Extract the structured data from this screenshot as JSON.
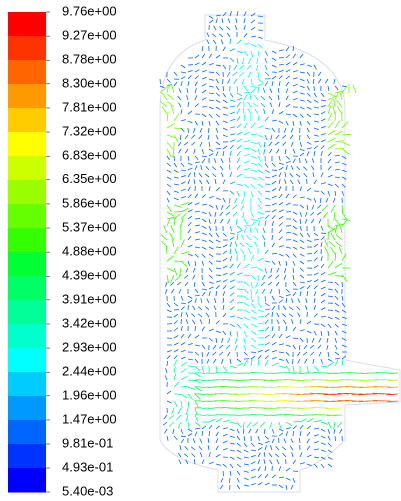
{
  "chart_data": {
    "type": "vector",
    "colorbar": {
      "lim": [
        0.0054,
        9.76
      ],
      "ticks": [
        {
          "value": 9.76,
          "label": "9.76e+00"
        },
        {
          "value": 9.27,
          "label": "9.27e+00"
        },
        {
          "value": 8.78,
          "label": "8.78e+00"
        },
        {
          "value": 8.3,
          "label": "8.30e+00"
        },
        {
          "value": 7.81,
          "label": "7.81e+00"
        },
        {
          "value": 7.32,
          "label": "7.32e+00"
        },
        {
          "value": 6.83,
          "label": "6.83e+00"
        },
        {
          "value": 6.35,
          "label": "6.35e+00"
        },
        {
          "value": 5.86,
          "label": "5.86e+00"
        },
        {
          "value": 5.37,
          "label": "5.37e+00"
        },
        {
          "value": 4.88,
          "label": "4.88e+00"
        },
        {
          "value": 4.39,
          "label": "4.39e+00"
        },
        {
          "value": 3.91,
          "label": "3.91e+00"
        },
        {
          "value": 3.42,
          "label": "3.42e+00"
        },
        {
          "value": 2.93,
          "label": "2.93e+00"
        },
        {
          "value": 2.44,
          "label": "2.44e+00"
        },
        {
          "value": 1.96,
          "label": "1.96e+00"
        },
        {
          "value": 1.47,
          "label": "1.47e+00"
        },
        {
          "value": 0.981,
          "label": "9.81e-01"
        },
        {
          "value": 0.493,
          "label": "4.93e-01"
        },
        {
          "value": 0.0054,
          "label": "5.40e-03"
        }
      ],
      "colors": [
        "#ff0000",
        "#ff3300",
        "#ff6600",
        "#ff9900",
        "#ffcc00",
        "#ffff00",
        "#ccff00",
        "#99ff00",
        "#66ff00",
        "#33ff00",
        "#00ff33",
        "#00ff66",
        "#00ff99",
        "#00ffcc",
        "#00ffff",
        "#00ccff",
        "#0099ff",
        "#0066ff",
        "#0033ff",
        "#0000ff"
      ]
    }
  }
}
